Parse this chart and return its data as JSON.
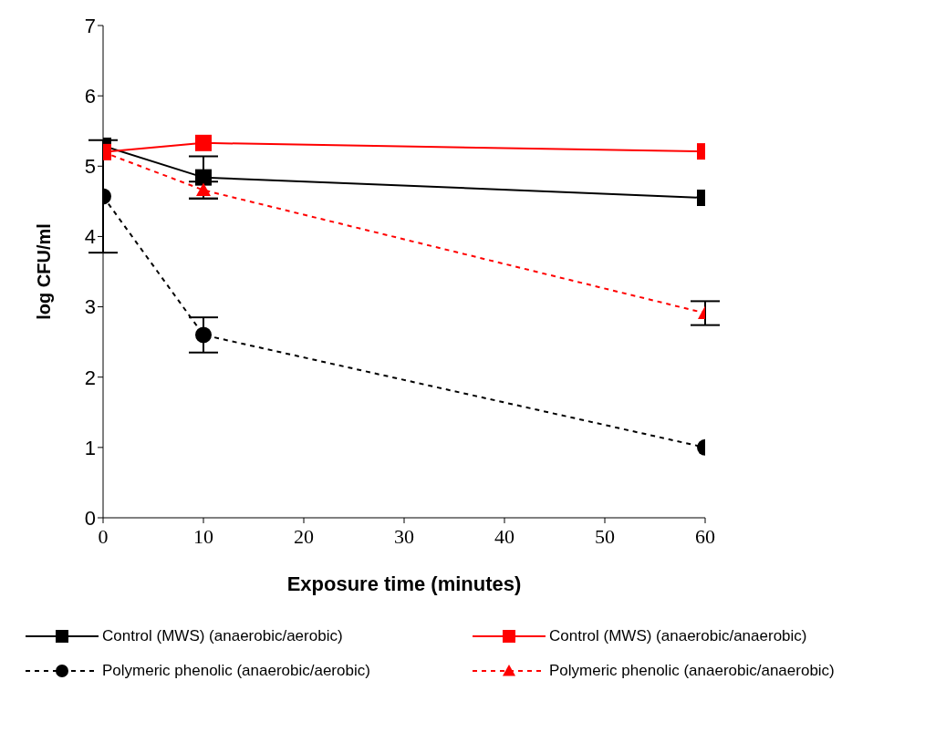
{
  "chart_data": {
    "type": "line",
    "xlabel": "Exposure time (minutes)",
    "ylabel": "log CFU/ml",
    "x": [
      0,
      10,
      60
    ],
    "xlim": [
      0,
      60
    ],
    "xticks": [
      0,
      10,
      20,
      30,
      40,
      50,
      60
    ],
    "ylim": [
      0,
      7
    ],
    "yticks": [
      0,
      1,
      2,
      3,
      4,
      5,
      6,
      7
    ],
    "grid": false,
    "legend": "bottom",
    "series": [
      {
        "name": "Control (MWS) (anaerobic/aerobic)",
        "color": "#000000",
        "marker": "square",
        "line_style": "solid",
        "values": [
          5.29,
          4.84,
          4.55
        ],
        "errors": [
          null,
          0.3,
          null
        ]
      },
      {
        "name": "Control (MWS) (anaerobic/anaerobic)",
        "color": "#ff0000",
        "marker": "square",
        "line_style": "solid",
        "values": [
          5.2,
          5.33,
          5.21
        ],
        "errors": [
          null,
          null,
          null
        ]
      },
      {
        "name": "Polymeric phenolic (anaerobic/aerobic)",
        "color": "#000000",
        "marker": "circle",
        "line_style": "dashed",
        "values": [
          4.57,
          2.6,
          1.0
        ],
        "errors": [
          0.8,
          0.25,
          null
        ]
      },
      {
        "name": "Polymeric phenolic (anaerobic/anaerobic)",
        "color": "#ff0000",
        "marker": "triangle",
        "line_style": "dashed",
        "values": [
          5.2,
          4.66,
          2.91
        ],
        "errors": [
          null,
          0.12,
          0.17
        ]
      }
    ]
  }
}
